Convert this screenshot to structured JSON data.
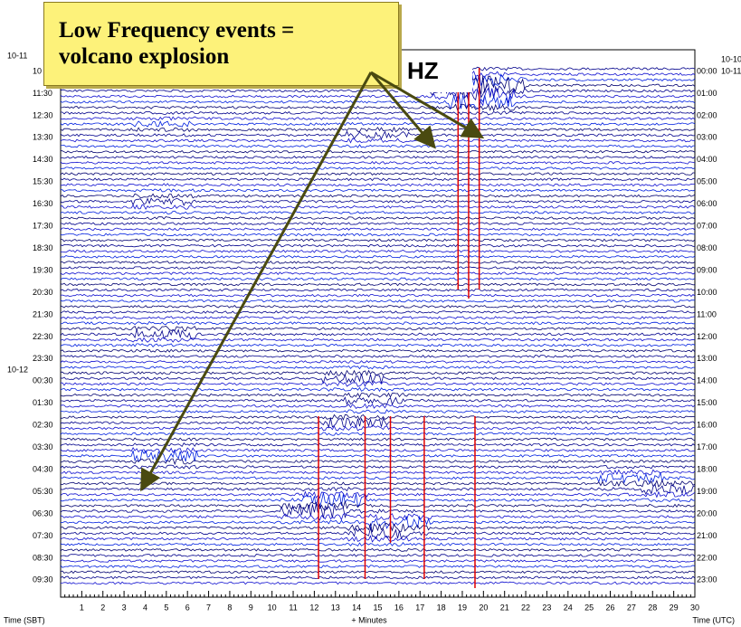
{
  "station_label": "HZ",
  "annotation": {
    "lines": [
      "Low Frequency events =",
      "volcano explosion"
    ]
  },
  "left_dates": [
    "10-11",
    "10-12"
  ],
  "left_times": [
    "10",
    "11:30",
    "12:30",
    "13:30",
    "14:30",
    "15:30",
    "16:30",
    "17:30",
    "18:30",
    "19:30",
    "20:30",
    "21:30",
    "22:30",
    "23:30",
    "00:30",
    "01:30",
    "02:30",
    "03:30",
    "04:30",
    "05:30",
    "06:30",
    "07:30",
    "08:30",
    "09:30"
  ],
  "right_dates": [
    "10-10",
    "10-11"
  ],
  "right_times": [
    "00:00",
    "01:00",
    "02:00",
    "03:00",
    "04:00",
    "05:00",
    "06:00",
    "07:00",
    "08:00",
    "09:00",
    "10:00",
    "11:00",
    "12:00",
    "13:00",
    "14:00",
    "15:00",
    "16:00",
    "17:00",
    "18:00",
    "19:00",
    "20:00",
    "21:00",
    "22:00",
    "23:00"
  ],
  "xticks": [
    1,
    2,
    3,
    4,
    5,
    6,
    7,
    8,
    9,
    10,
    11,
    12,
    13,
    14,
    15,
    16,
    17,
    18,
    19,
    20,
    21,
    22,
    23,
    24,
    25,
    26,
    27,
    28,
    29,
    30
  ],
  "x_axis": {
    "left": "Time (SBT)",
    "center": "+ Minutes",
    "right": "Time (UTC)"
  }
}
